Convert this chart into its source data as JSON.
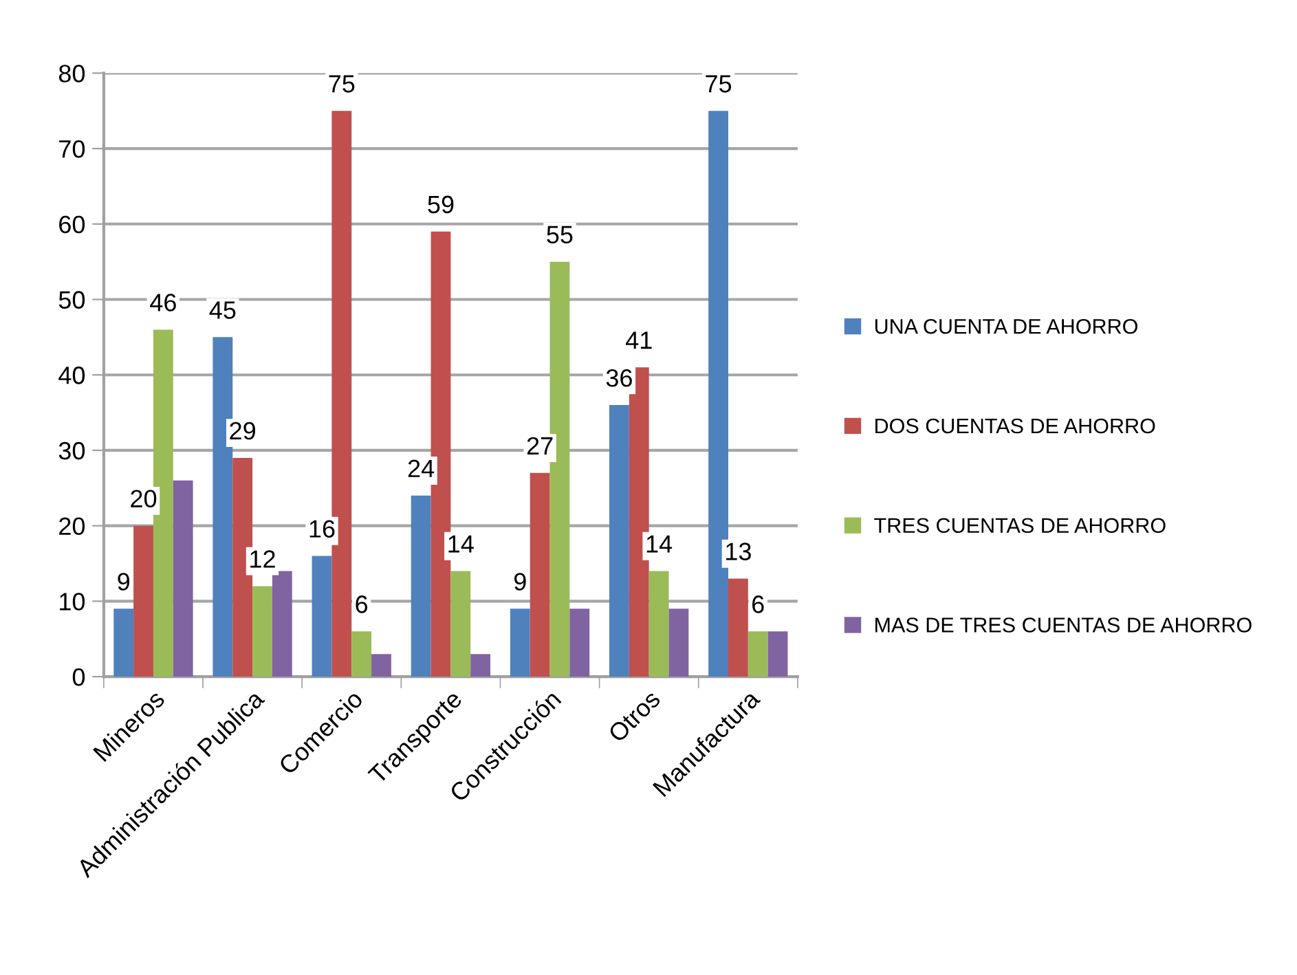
{
  "chart_data": {
    "type": "bar",
    "categories": [
      "Mineros",
      "Administración Publica",
      "Comercio",
      "Transporte",
      "Construcción",
      "Otros",
      "Manufactura"
    ],
    "series": [
      {
        "name": "UNA CUENTA DE AHORRO",
        "color": "#4f81bd",
        "values": [
          9,
          45,
          16,
          24,
          9,
          36,
          75
        ],
        "value_labels": [
          "9",
          "45",
          "16",
          "24",
          "9",
          "36",
          "75"
        ]
      },
      {
        "name": "DOS CUENTAS DE AHORRO",
        "color": "#c0504d",
        "values": [
          20,
          29,
          75,
          59,
          27,
          41,
          13
        ],
        "value_labels": [
          "20",
          "29",
          "75",
          "59",
          "27",
          "41",
          "13"
        ]
      },
      {
        "name": "TRES CUENTAS DE AHORRO",
        "color": "#9bbb59",
        "values": [
          46,
          12,
          6,
          14,
          55,
          14,
          6
        ],
        "value_labels": [
          "46",
          "12",
          "6",
          "14",
          "55",
          "14",
          "6"
        ]
      },
      {
        "name": "MAS DE TRES CUENTAS DE AHORRO",
        "color": "#8064a2",
        "values": [
          26,
          14,
          3,
          3,
          9,
          9,
          6
        ]
      }
    ],
    "ylim": [
      0,
      80
    ],
    "yticks": [
      0,
      10,
      20,
      30,
      40,
      50,
      60,
      70,
      80
    ],
    "grid": "y",
    "legend": "right"
  }
}
